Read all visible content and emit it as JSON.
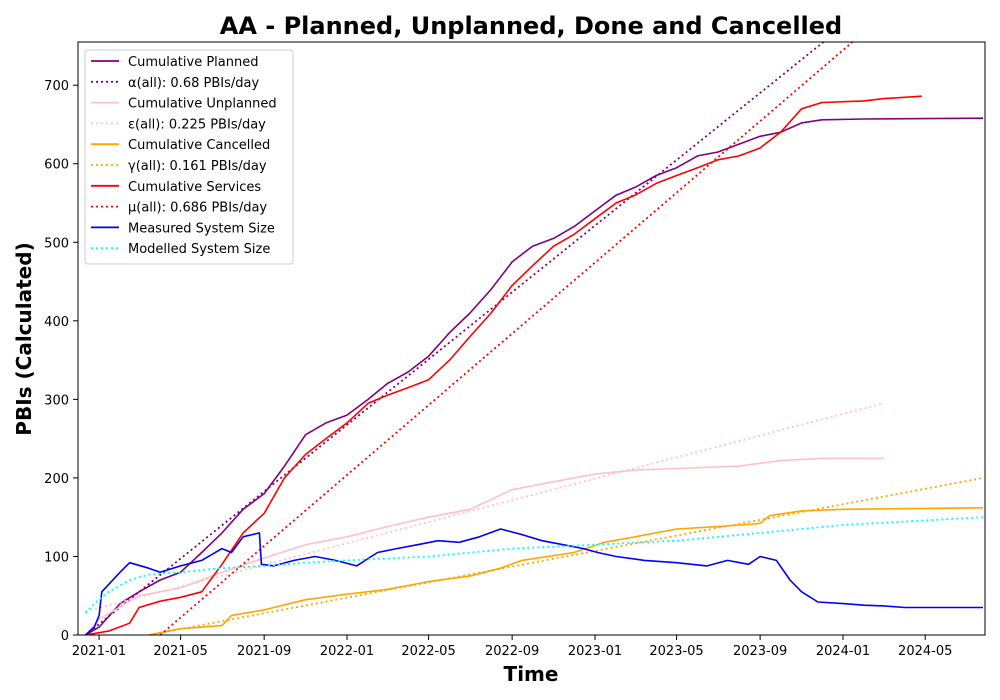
{
  "chart_data": {
    "type": "line",
    "title": "AA - Planned, Unplanned, Done  and Cancelled",
    "xlabel": "Time",
    "ylabel": "PBIs (Calculated)",
    "xlim": [
      "2020-12-01",
      "2024-07-28"
    ],
    "ylim": [
      0,
      755
    ],
    "x_ticks": [
      "2021-01",
      "2021-05",
      "2021-09",
      "2022-01",
      "2022-05",
      "2022-09",
      "2023-01",
      "2023-05",
      "2023-09",
      "2024-01",
      "2024-05"
    ],
    "y_ticks": [
      0,
      100,
      200,
      300,
      400,
      500,
      600,
      700
    ],
    "grid": false,
    "legend_position": "top-left",
    "series": [
      {
        "name": "Cumulative Planned",
        "color": "#800080",
        "style": "solid",
        "points": [
          [
            "2020-12-12",
            0
          ],
          [
            "2021-01-01",
            10
          ],
          [
            "2021-02-01",
            40
          ],
          [
            "2021-03-01",
            55
          ],
          [
            "2021-04-01",
            70
          ],
          [
            "2021-05-01",
            80
          ],
          [
            "2021-06-01",
            105
          ],
          [
            "2021-07-01",
            130
          ],
          [
            "2021-08-01",
            160
          ],
          [
            "2021-09-01",
            180
          ],
          [
            "2021-10-01",
            215
          ],
          [
            "2021-11-01",
            255
          ],
          [
            "2021-12-01",
            270
          ],
          [
            "2022-01-01",
            280
          ],
          [
            "2022-02-01",
            300
          ],
          [
            "2022-03-01",
            320
          ],
          [
            "2022-04-01",
            335
          ],
          [
            "2022-05-01",
            355
          ],
          [
            "2022-06-01",
            385
          ],
          [
            "2022-07-01",
            410
          ],
          [
            "2022-08-01",
            440
          ],
          [
            "2022-09-01",
            475
          ],
          [
            "2022-10-01",
            495
          ],
          [
            "2022-11-01",
            505
          ],
          [
            "2022-12-01",
            520
          ],
          [
            "2023-01-01",
            540
          ],
          [
            "2023-02-01",
            560
          ],
          [
            "2023-03-01",
            570
          ],
          [
            "2023-04-01",
            585
          ],
          [
            "2023-05-01",
            595
          ],
          [
            "2023-06-01",
            610
          ],
          [
            "2023-07-01",
            615
          ],
          [
            "2023-08-01",
            625
          ],
          [
            "2023-09-01",
            635
          ],
          [
            "2023-10-01",
            640
          ],
          [
            "2023-11-01",
            652
          ],
          [
            "2023-12-01",
            656
          ],
          [
            "2024-02-01",
            657
          ],
          [
            "2024-07-25",
            658
          ]
        ]
      },
      {
        "name": "α(all): 0.68 PBIs/day",
        "color": "#800080",
        "style": "dotted",
        "points": [
          [
            "2020-12-12",
            0
          ],
          [
            "2024-01-01",
            775
          ]
        ]
      },
      {
        "name": "Cumulative Unplanned",
        "color": "#ffc0cb",
        "style": "solid",
        "points": [
          [
            "2020-12-12",
            0
          ],
          [
            "2021-01-01",
            20
          ],
          [
            "2021-03-01",
            50
          ],
          [
            "2021-05-01",
            60
          ],
          [
            "2021-07-01",
            80
          ],
          [
            "2021-09-01",
            98
          ],
          [
            "2021-11-01",
            115
          ],
          [
            "2022-01-01",
            125
          ],
          [
            "2022-03-01",
            138
          ],
          [
            "2022-05-01",
            150
          ],
          [
            "2022-07-01",
            160
          ],
          [
            "2022-09-01",
            185
          ],
          [
            "2022-11-01",
            195
          ],
          [
            "2023-01-01",
            205
          ],
          [
            "2023-03-01",
            210
          ],
          [
            "2023-05-01",
            212
          ],
          [
            "2023-08-01",
            215
          ],
          [
            "2023-10-01",
            222
          ],
          [
            "2023-12-01",
            225
          ],
          [
            "2024-03-01",
            225
          ]
        ]
      },
      {
        "name": "ε(all): 0.225 PBIs/day",
        "color": "#ffc0cb",
        "style": "dotted",
        "points": [
          [
            "2020-12-12",
            30
          ],
          [
            "2024-03-01",
            295
          ]
        ]
      },
      {
        "name": "Cumulative Cancelled",
        "color": "#ffa500",
        "style": "solid",
        "points": [
          [
            "2021-03-15",
            0
          ],
          [
            "2021-05-01",
            8
          ],
          [
            "2021-07-01",
            12
          ],
          [
            "2021-07-15",
            25
          ],
          [
            "2021-09-01",
            32
          ],
          [
            "2021-11-01",
            45
          ],
          [
            "2022-01-01",
            52
          ],
          [
            "2022-03-01",
            58
          ],
          [
            "2022-05-01",
            68
          ],
          [
            "2022-07-01",
            75
          ],
          [
            "2022-08-15",
            85
          ],
          [
            "2022-09-15",
            95
          ],
          [
            "2022-12-01",
            105
          ],
          [
            "2023-01-15",
            118
          ],
          [
            "2023-03-01",
            125
          ],
          [
            "2023-05-01",
            135
          ],
          [
            "2023-07-01",
            138
          ],
          [
            "2023-09-01",
            142
          ],
          [
            "2023-09-15",
            152
          ],
          [
            "2023-11-01",
            158
          ],
          [
            "2024-01-01",
            160
          ],
          [
            "2024-07-25",
            162
          ]
        ]
      },
      {
        "name": "γ(all): 0.161 PBIs/day",
        "color": "#ffa500",
        "style": "dotted",
        "points": [
          [
            "2021-03-15",
            0
          ],
          [
            "2024-07-25",
            200
          ]
        ]
      },
      {
        "name": "Cumulative Services",
        "color": "#ff0000",
        "style": "solid",
        "points": [
          [
            "2020-12-12",
            0
          ],
          [
            "2021-01-15",
            5
          ],
          [
            "2021-02-15",
            15
          ],
          [
            "2021-03-01",
            35
          ],
          [
            "2021-04-01",
            43
          ],
          [
            "2021-05-01",
            48
          ],
          [
            "2021-06-01",
            55
          ],
          [
            "2021-07-01",
            90
          ],
          [
            "2021-08-01",
            130
          ],
          [
            "2021-09-01",
            155
          ],
          [
            "2021-10-01",
            200
          ],
          [
            "2021-11-01",
            230
          ],
          [
            "2021-12-01",
            250
          ],
          [
            "2022-01-01",
            270
          ],
          [
            "2022-02-01",
            295
          ],
          [
            "2022-03-01",
            305
          ],
          [
            "2022-04-01",
            315
          ],
          [
            "2022-05-01",
            325
          ],
          [
            "2022-06-01",
            350
          ],
          [
            "2022-07-01",
            380
          ],
          [
            "2022-08-01",
            410
          ],
          [
            "2022-09-01",
            445
          ],
          [
            "2022-10-01",
            470
          ],
          [
            "2022-11-01",
            495
          ],
          [
            "2022-12-01",
            510
          ],
          [
            "2023-01-01",
            530
          ],
          [
            "2023-02-01",
            550
          ],
          [
            "2023-03-01",
            560
          ],
          [
            "2023-04-01",
            575
          ],
          [
            "2023-05-01",
            585
          ],
          [
            "2023-06-01",
            595
          ],
          [
            "2023-07-01",
            605
          ],
          [
            "2023-08-01",
            610
          ],
          [
            "2023-09-01",
            620
          ],
          [
            "2023-10-01",
            640
          ],
          [
            "2023-11-01",
            670
          ],
          [
            "2023-12-01",
            678
          ],
          [
            "2024-02-01",
            680
          ],
          [
            "2024-03-01",
            683
          ],
          [
            "2024-04-26",
            686
          ]
        ]
      },
      {
        "name": "μ(all): 0.686 PBIs/day",
        "color": "#ff0000",
        "style": "dotted",
        "points": [
          [
            "2021-04-01",
            0
          ],
          [
            "2024-01-15",
            755
          ]
        ]
      },
      {
        "name": "Measured System Size",
        "color": "#0000ff",
        "style": "solid",
        "points": [
          [
            "2020-12-12",
            0
          ],
          [
            "2020-12-25",
            10
          ],
          [
            "2021-01-01",
            25
          ],
          [
            "2021-01-05",
            55
          ],
          [
            "2021-02-01",
            80
          ],
          [
            "2021-02-15",
            92
          ],
          [
            "2021-03-15",
            85
          ],
          [
            "2021-04-01",
            80
          ],
          [
            "2021-05-01",
            88
          ],
          [
            "2021-06-01",
            95
          ],
          [
            "2021-07-01",
            110
          ],
          [
            "2021-07-15",
            105
          ],
          [
            "2021-08-01",
            125
          ],
          [
            "2021-08-25",
            130
          ],
          [
            "2021-08-28",
            90
          ],
          [
            "2021-09-15",
            88
          ],
          [
            "2021-10-15",
            95
          ],
          [
            "2021-11-15",
            100
          ],
          [
            "2021-12-15",
            95
          ],
          [
            "2022-01-15",
            88
          ],
          [
            "2022-02-15",
            105
          ],
          [
            "2022-03-15",
            110
          ],
          [
            "2022-04-15",
            115
          ],
          [
            "2022-05-15",
            120
          ],
          [
            "2022-06-15",
            118
          ],
          [
            "2022-07-15",
            125
          ],
          [
            "2022-08-15",
            135
          ],
          [
            "2022-09-15",
            128
          ],
          [
            "2022-10-15",
            120
          ],
          [
            "2022-11-15",
            115
          ],
          [
            "2022-12-15",
            110
          ],
          [
            "2023-01-05",
            105
          ],
          [
            "2023-02-01",
            100
          ],
          [
            "2023-03-15",
            95
          ],
          [
            "2023-05-01",
            92
          ],
          [
            "2023-06-15",
            88
          ],
          [
            "2023-07-15",
            95
          ],
          [
            "2023-08-15",
            90
          ],
          [
            "2023-09-01",
            100
          ],
          [
            "2023-09-25",
            95
          ],
          [
            "2023-10-15",
            70
          ],
          [
            "2023-11-01",
            55
          ],
          [
            "2023-11-25",
            42
          ],
          [
            "2024-01-01",
            40
          ],
          [
            "2024-02-01",
            38
          ],
          [
            "2024-03-01",
            37
          ],
          [
            "2024-04-01",
            35
          ],
          [
            "2024-07-25",
            35
          ]
        ]
      },
      {
        "name": "Modelled System Size",
        "color": "#00ffff",
        "style": "dotted",
        "points": [
          [
            "2020-12-12",
            28
          ],
          [
            "2020-12-25",
            40
          ],
          [
            "2021-01-15",
            55
          ],
          [
            "2021-02-15",
            70
          ],
          [
            "2021-03-15",
            77
          ],
          [
            "2021-05-01",
            80
          ],
          [
            "2021-07-01",
            85
          ],
          [
            "2021-09-01",
            88
          ],
          [
            "2021-11-01",
            92
          ],
          [
            "2022-01-01",
            95
          ],
          [
            "2022-05-01",
            100
          ],
          [
            "2022-09-01",
            110
          ],
          [
            "2023-01-01",
            115
          ],
          [
            "2023-05-01",
            120
          ],
          [
            "2023-09-01",
            130
          ],
          [
            "2024-01-01",
            140
          ],
          [
            "2024-07-25",
            150
          ]
        ]
      }
    ]
  }
}
